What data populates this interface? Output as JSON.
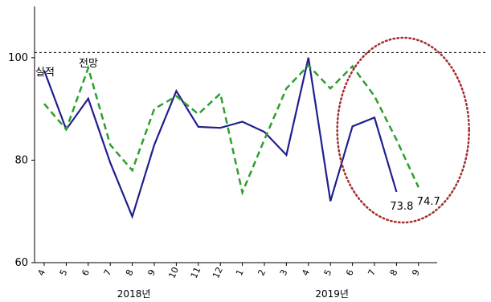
{
  "chart_data": {
    "type": "line",
    "title": "",
    "xlabel": "",
    "ylabel": "",
    "ylim": [
      60,
      110
    ],
    "yticks": [
      60,
      80,
      100
    ],
    "grid": false,
    "x": [
      "4",
      "5",
      "6",
      "7",
      "8",
      "9",
      "10",
      "11",
      "12",
      "1",
      "2",
      "3",
      "4",
      "5",
      "6",
      "7",
      "8",
      "9"
    ],
    "year_labels": [
      {
        "text": "2018년",
        "index": 4
      },
      {
        "text": "2019년",
        "index": 13
      }
    ],
    "reference_line": 101,
    "series": [
      {
        "name": "실적",
        "style": "solid",
        "color": "#1f1f8f",
        "values": [
          97.5,
          86,
          92,
          79.5,
          69,
          83,
          93.5,
          86.5,
          86.3,
          87.5,
          85.5,
          81,
          100,
          72,
          86.6,
          88.3,
          73.8,
          null
        ]
      },
      {
        "name": "전망",
        "style": "dashed",
        "color": "#2ca02c",
        "values": [
          91,
          86,
          98,
          83,
          78,
          90,
          92.5,
          89,
          93,
          73.7,
          84,
          94,
          98.5,
          94,
          98.3,
          92.5,
          84,
          74.7
        ]
      }
    ],
    "annotations": [
      {
        "text": "73.8",
        "series": 0,
        "index": 16
      },
      {
        "text": "74.7",
        "series": 1,
        "index": 17
      }
    ],
    "highlight": {
      "shape": "ellipse",
      "style": "dotted",
      "color": "#a52a2a",
      "index_range": [
        14,
        17
      ]
    }
  }
}
